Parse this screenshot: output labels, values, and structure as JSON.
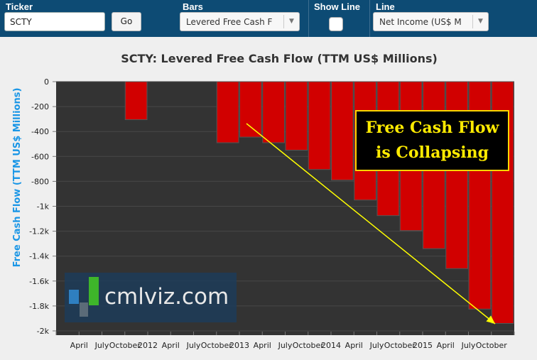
{
  "toolbar": {
    "ticker_label": "Ticker",
    "ticker_value": "SCTY",
    "go_label": "Go",
    "bars_label": "Bars",
    "bars_value": "Levered Free Cash F",
    "show_line_label": "Show Line",
    "line_label": "Line",
    "line_value": "Net Income (US$ M"
  },
  "callout": {
    "line1": "Free Cash Flow",
    "line2": "is Collapsing"
  },
  "watermark": {
    "text": "cmlviz.com"
  },
  "colors": {
    "bar": "#d10000",
    "plot_bg": "#333333",
    "toolbar": "#0d4b74",
    "ylabel": "#1a96e6",
    "arrow": "#ffff00"
  },
  "chart_data": {
    "type": "bar",
    "title": "SCTY: Levered Free Cash Flow (TTM US$ Millions)",
    "ylabel": "Free Cash Flow  (TTM US$ Millions)",
    "xlabel": "",
    "ylim": [
      -2000,
      0
    ],
    "yticks": [
      0,
      -200,
      -400,
      -600,
      -800,
      -1000,
      -1200,
      -1400,
      -1600,
      -1800,
      -2000
    ],
    "ytick_labels": [
      "0",
      "-200",
      "-400",
      "-600",
      "-800",
      "-1k",
      "-1.2k",
      "-1.4k",
      "-1.6k",
      "-1.8k",
      "-2k"
    ],
    "xtick_labels": [
      "April",
      "July",
      "October",
      "2012",
      "April",
      "July",
      "October",
      "2013",
      "April",
      "July",
      "October",
      "2014",
      "April",
      "July",
      "October",
      "2015",
      "April",
      "July",
      "October"
    ],
    "values": [
      null,
      null,
      null,
      -305,
      null,
      null,
      null,
      -490,
      -445,
      -490,
      -550,
      -705,
      -790,
      -950,
      -1075,
      -1195,
      -1340,
      -1500,
      -1825,
      -1940
    ],
    "grid": true
  }
}
